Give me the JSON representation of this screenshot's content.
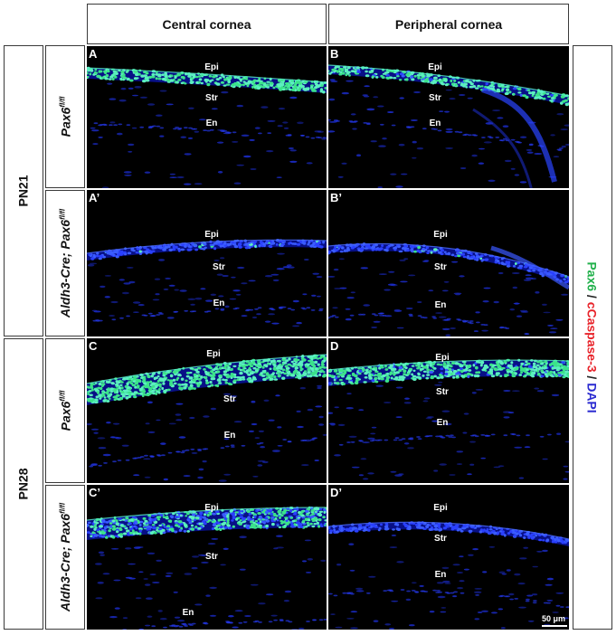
{
  "columns": [
    "Central cornea",
    "Peripheral cornea"
  ],
  "stages": [
    "PN21",
    "PN28"
  ],
  "genotypes": {
    "control": {
      "name": "Pax6",
      "sup": "fl/fl"
    },
    "mutant": {
      "name": "Aldh3-Cre; Pax6",
      "sup": "fl/fl"
    }
  },
  "legend": {
    "parts": [
      {
        "text": "Pax6",
        "color": "#22b14c"
      },
      {
        "text": " / ",
        "color": "#222222"
      },
      {
        "text": "cCaspase-3",
        "color": "#e8232a"
      },
      {
        "text": " / ",
        "color": "#222222"
      },
      {
        "text": "DAPI",
        "color": "#2a2ad0"
      }
    ]
  },
  "panels": [
    {
      "id": "A",
      "label": "A",
      "genotype": "control",
      "labels": {
        "epi": "Epi",
        "str": "Str",
        "en": "En"
      }
    },
    {
      "id": "B",
      "label": "B",
      "genotype": "control",
      "labels": {
        "epi": "Epi",
        "str": "Str",
        "en": "En"
      }
    },
    {
      "id": "A2",
      "label": "A’",
      "genotype": "mutant",
      "labels": {
        "epi": "Epi",
        "str": "Str",
        "en": "En"
      }
    },
    {
      "id": "B2",
      "label": "B’",
      "genotype": "mutant",
      "labels": {
        "epi": "Epi",
        "str": "Str",
        "en": "En"
      }
    },
    {
      "id": "C",
      "label": "C",
      "genotype": "control",
      "labels": {
        "epi": "Epi",
        "str": "Str",
        "en": "En"
      }
    },
    {
      "id": "D",
      "label": "D",
      "genotype": "control",
      "labels": {
        "epi": "Epi",
        "str": "Str",
        "en": "En"
      }
    },
    {
      "id": "C2",
      "label": "C’",
      "genotype": "mutant",
      "labels": {
        "epi": "Epi",
        "str": "Str",
        "en": "En"
      }
    },
    {
      "id": "D2",
      "label": "D’",
      "genotype": "mutant",
      "labels": {
        "epi": "Epi",
        "str": "Str",
        "en": "En"
      }
    }
  ],
  "scale_bar": {
    "text": "50 μm"
  },
  "colors": {
    "epithelium_pax6": "#39e07a",
    "dapi": "#2a3cff",
    "background": "#000000"
  }
}
